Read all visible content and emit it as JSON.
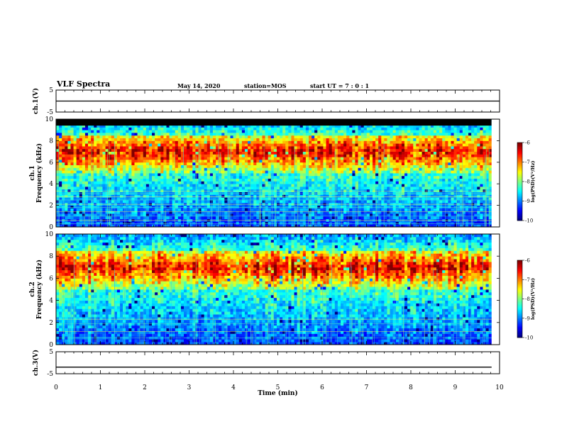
{
  "header": {
    "title": "VLF Spectra",
    "date": "May 14, 2020",
    "station": "station=MOS",
    "start_ut": "start UT =  7 : 0 : 1"
  },
  "chart_data": [
    {
      "type": "line",
      "panel": "ch.1 waveform",
      "ylabel": "ch.1(V)",
      "ylim": [
        -5,
        5
      ],
      "yticks": [
        "5",
        "-5"
      ],
      "x": [
        0,
        10
      ],
      "values": [
        0,
        0
      ]
    },
    {
      "type": "heatmap",
      "panel": "ch.1 spectrogram",
      "ylabel": "ch.1\nFrequency (kHz)",
      "ylim": [
        0,
        10
      ],
      "yticks": [
        "0",
        "2",
        "4",
        "6",
        "8",
        "10"
      ],
      "xlim": [
        0,
        10
      ],
      "data_end_min": 9.82,
      "band_top_khz": 9.4,
      "intense_band_khz": [
        5.0,
        8.5
      ],
      "peak_khz": 7.0,
      "colorbar": {
        "label": "log(PSD)(V²/Hz)",
        "ticks": [
          "-6",
          "-7",
          "-8",
          "-9",
          "-10"
        ],
        "range": [
          -10,
          -6
        ]
      }
    },
    {
      "type": "heatmap",
      "panel": "ch.2 spectrogram",
      "ylabel": "ch.2\nFrequency (kHz)",
      "ylim": [
        0,
        10
      ],
      "yticks": [
        "0",
        "2",
        "4",
        "6",
        "8",
        "10"
      ],
      "xlim": [
        0,
        10
      ],
      "data_end_min": 9.82,
      "intense_band_khz": [
        5.0,
        8.5
      ],
      "peak_khz": 7.0,
      "colorbar": {
        "label": "log(PSD)(V²/Hz)",
        "ticks": [
          "-6",
          "-7",
          "-8",
          "-9",
          "-10"
        ],
        "range": [
          -10,
          -6
        ]
      }
    },
    {
      "type": "line",
      "panel": "ch.3 waveform",
      "ylabel": "ch.3(V)",
      "ylim": [
        -5,
        5
      ],
      "yticks": [
        "5",
        "-5"
      ],
      "x": [
        0,
        9.82
      ],
      "values": [
        -2,
        -2
      ]
    }
  ],
  "xaxis": {
    "label": "Time (min)",
    "ticks": [
      "0",
      "1",
      "2",
      "3",
      "4",
      "5",
      "6",
      "7",
      "8",
      "9",
      "10"
    ]
  }
}
